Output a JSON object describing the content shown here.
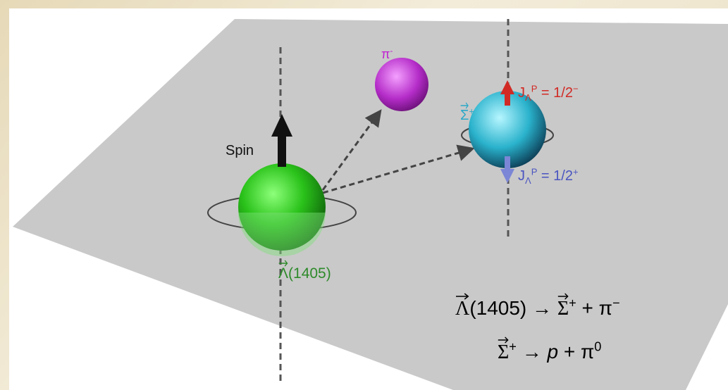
{
  "labels": {
    "spin": "Spin",
    "pi_minus": {
      "base": "π",
      "sup": "-"
    },
    "sigma_plus": {
      "base": "Σ",
      "sup": "+"
    },
    "j_minus": {
      "base": "J",
      "sub": "Λ",
      "sup": "P",
      "rest": " = 1/2",
      "rest_sup": "−"
    },
    "j_plus": {
      "base": "J",
      "sub": "Λ",
      "sup": "P",
      "rest": " = 1/2",
      "rest_sup": "+"
    },
    "lambda": {
      "base": "Λ",
      "rest": "(1405)"
    }
  },
  "equations": [
    {
      "lambda": "Λ",
      "lambda_rest": "(1405) → ",
      "sigma": "Σ",
      "sigma_sup": "+",
      "rest": " + π",
      "rest_sup": "−"
    },
    {
      "sigma": "Σ",
      "sigma_sup": "+",
      "rest": " → ",
      "p": "p",
      "rest2": " + π",
      "rest2_sup": "0"
    }
  ]
}
